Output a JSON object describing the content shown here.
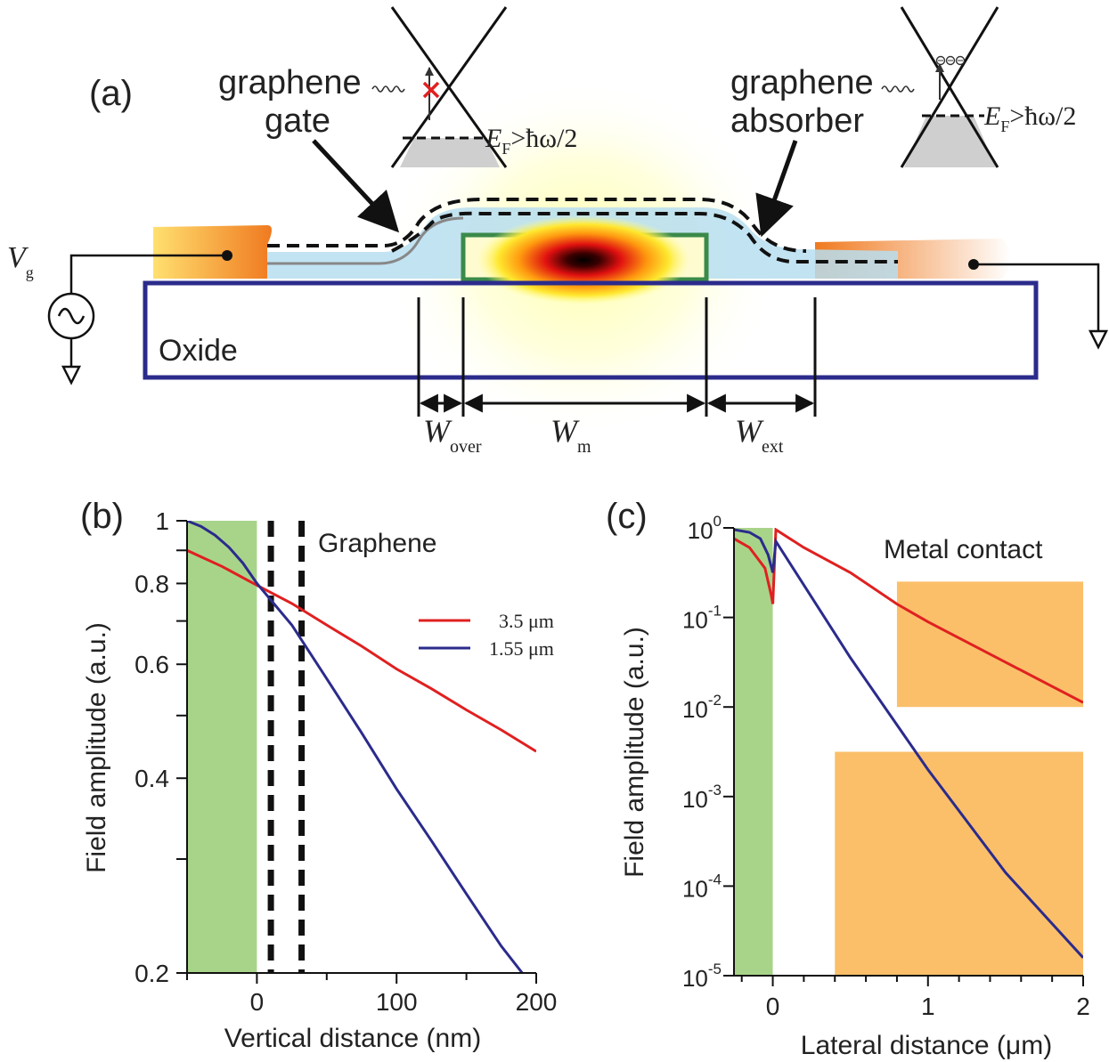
{
  "panel_a": {
    "label": "(a)",
    "gate_label_line1": "graphene",
    "gate_label_line2": "gate",
    "absorber_label_line1": "graphene",
    "absorber_label_line2": "absorber",
    "oxide_label": "Oxide",
    "vg_symbol": "V",
    "vg_sub": "g",
    "fermi_left": {
      "e": "E",
      "sub": "F",
      "rest": ">ħω/2"
    },
    "fermi_right": {
      "e": "E",
      "sub": "F",
      "rest": ">ħω/2"
    },
    "w_over": {
      "sym": "W",
      "sub": "over"
    },
    "w_m": {
      "sym": "W",
      "sub": "m"
    },
    "w_ext": {
      "sym": "W",
      "sub": "ext"
    },
    "colors": {
      "oxide": "#2b2b8c",
      "waveguide": "#3a8a4a",
      "contact": "#f08020",
      "graphene_film": "#a8d4ec"
    }
  },
  "chart_data": [
    {
      "id": "b",
      "type": "line",
      "panel_label": "(b)",
      "title": "",
      "xlabel": "Vertical distance (nm)",
      "ylabel": "Field amplitude (a.u.)",
      "xlim": [
        -50,
        200
      ],
      "ylim": [
        0.2,
        1.0
      ],
      "yscale": "log",
      "x_ticks": [
        "0",
        "100",
        "200"
      ],
      "y_ticks": [
        "0.2",
        "0.4",
        "0.6",
        "0.8",
        "1"
      ],
      "annotation": "Graphene",
      "graphene_lines_x": [
        10,
        32
      ],
      "waveguide_region_x": [
        -50,
        0
      ],
      "legend_position": "right",
      "series": [
        {
          "name": "3.5 μm",
          "color": "#e02020",
          "x": [
            -50,
            -25,
            0,
            25,
            50,
            75,
            100,
            125,
            150,
            175,
            200
          ],
          "y": [
            0.9,
            0.85,
            0.795,
            0.745,
            0.69,
            0.64,
            0.59,
            0.55,
            0.51,
            0.475,
            0.44
          ]
        },
        {
          "name": "1.55 μm",
          "color": "#2b2b8c",
          "x": [
            -50,
            -40,
            -30,
            -20,
            -10,
            0,
            25,
            50,
            75,
            100,
            125,
            150,
            175,
            190
          ],
          "y": [
            1.0,
            0.98,
            0.95,
            0.91,
            0.86,
            0.8,
            0.69,
            0.57,
            0.47,
            0.385,
            0.32,
            0.265,
            0.22,
            0.2
          ]
        }
      ]
    },
    {
      "id": "c",
      "type": "line",
      "panel_label": "(c)",
      "title": "",
      "xlabel": "Lateral distance (μm)",
      "ylabel": "Field amplitude (a.u.)",
      "xlim": [
        -0.25,
        2
      ],
      "ylim": [
        -5,
        0
      ],
      "yscale": "log",
      "x_ticks": [
        "0",
        "1",
        "2"
      ],
      "y_tick_exponents": [
        "0",
        "-1",
        "-2",
        "-3",
        "-4",
        "-5"
      ],
      "y_tick_base": "10",
      "annotation": "Metal contact",
      "waveguide_region_x": [
        -0.25,
        0
      ],
      "legend_position": "none",
      "metal_regions": [
        {
          "x": [
            0.8,
            2.0
          ],
          "y_log": [
            -2.0,
            -0.6
          ]
        },
        {
          "x": [
            0.4,
            2.0
          ],
          "y_log": [
            -5.0,
            -2.5
          ]
        }
      ],
      "series": [
        {
          "name": "",
          "color": "#e02020",
          "x": [
            -0.25,
            -0.15,
            -0.05,
            -0.01,
            0.0,
            0.02,
            0.2,
            0.5,
            0.8,
            1.0,
            1.5,
            2.0
          ],
          "y_log": [
            -0.12,
            -0.22,
            -0.45,
            -0.75,
            -0.85,
            -0.02,
            -0.22,
            -0.5,
            -0.85,
            -1.05,
            -1.5,
            -1.95
          ]
        },
        {
          "name": "",
          "color": "#2b2b8c",
          "x": [
            -0.25,
            -0.15,
            -0.08,
            -0.03,
            0.0,
            0.02,
            0.5,
            1.0,
            1.5,
            2.0
          ],
          "y_log": [
            -0.02,
            -0.05,
            -0.12,
            -0.3,
            -0.5,
            -0.15,
            -1.45,
            -2.7,
            -3.85,
            -4.8
          ]
        }
      ]
    }
  ]
}
